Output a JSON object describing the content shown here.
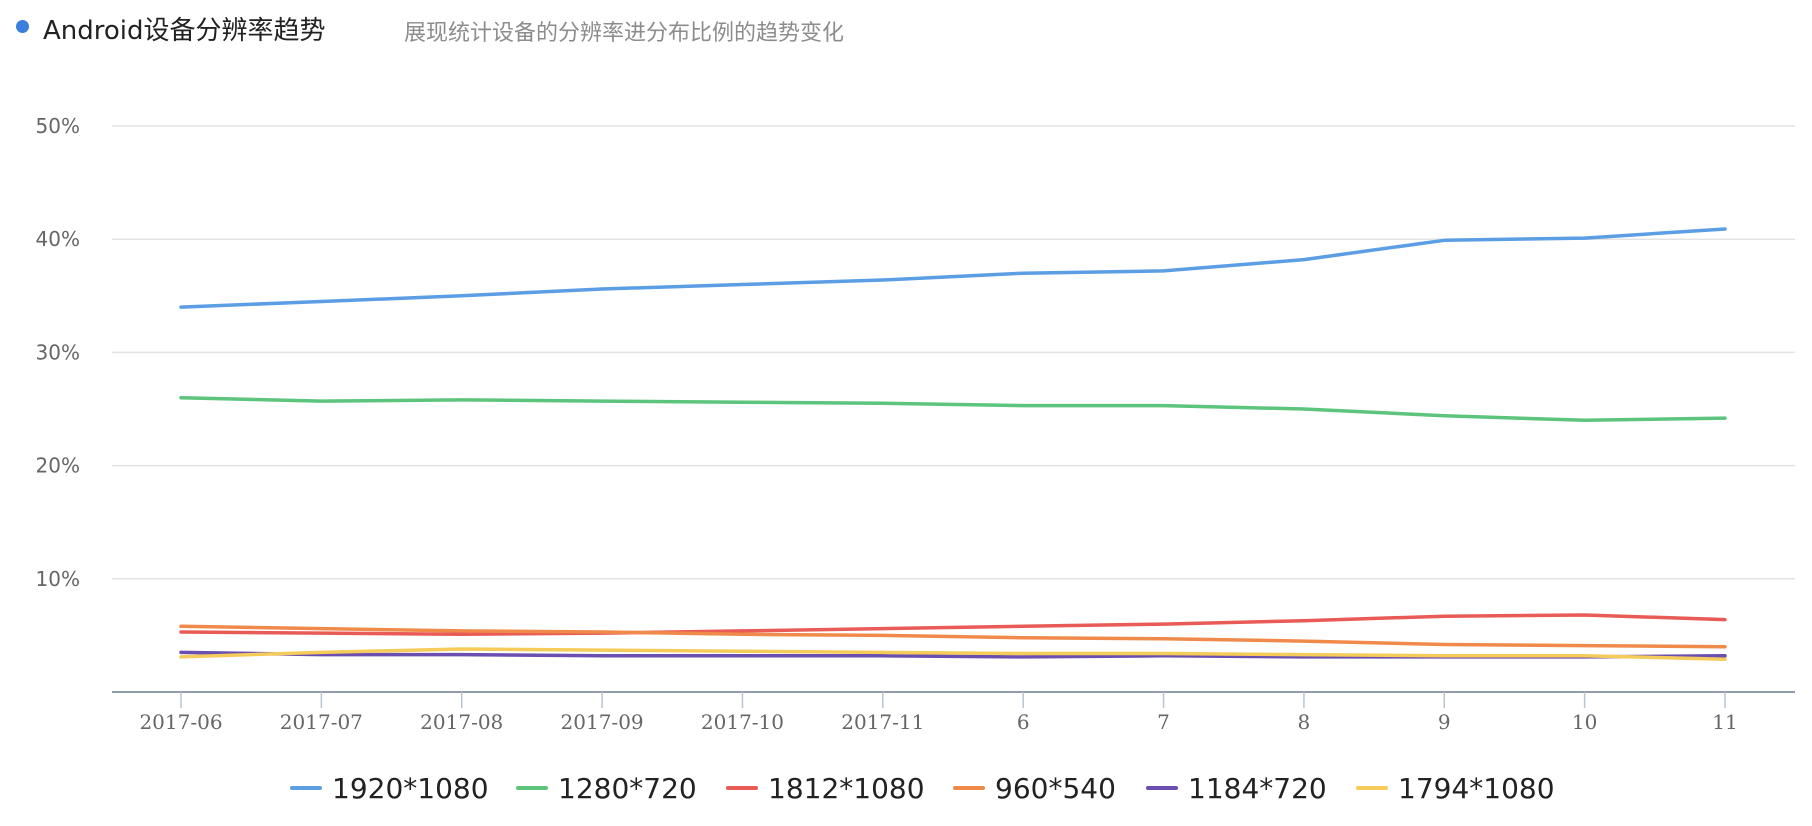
{
  "header": {
    "title": "Android设备分辨率趋势",
    "subtitle": "展现统计设备的分辨率进分布比例的趋势变化"
  },
  "chart_data": {
    "type": "line",
    "title": "Android设备分辨率趋势",
    "subtitle": "展现统计设备的分辨率进分布比例的趋势变化",
    "categories": [
      "2017-06",
      "2017-07",
      "2017-08",
      "2017-09",
      "2017-10",
      "2017-11",
      "6",
      "7",
      "8",
      "9",
      "10",
      "11"
    ],
    "y_ticks": [
      "10%",
      "20%",
      "30%",
      "40%",
      "50%"
    ],
    "ylim": [
      0,
      50
    ],
    "grid": true,
    "legend_position": "bottom",
    "series": [
      {
        "name": "1920*1080",
        "color": "#5b9ee4",
        "values": [
          34.0,
          34.5,
          35.0,
          35.6,
          36.0,
          36.4,
          37.0,
          37.2,
          38.2,
          39.9,
          40.1,
          40.9
        ]
      },
      {
        "name": "1280*720",
        "color": "#5cc47d",
        "values": [
          26.0,
          25.7,
          25.8,
          25.7,
          25.6,
          25.5,
          25.3,
          25.3,
          25.0,
          24.4,
          24.0,
          24.2
        ]
      },
      {
        "name": "1812*1080",
        "color": "#e85b56",
        "values": [
          5.3,
          5.2,
          5.1,
          5.2,
          5.4,
          5.6,
          5.8,
          6.0,
          6.3,
          6.7,
          6.8,
          6.4
        ]
      },
      {
        "name": "960*540",
        "color": "#f08a4b",
        "values": [
          5.8,
          5.6,
          5.4,
          5.3,
          5.1,
          5.0,
          4.8,
          4.7,
          4.5,
          4.2,
          4.1,
          4.0
        ]
      },
      {
        "name": "1184*720",
        "color": "#6a4fb0",
        "values": [
          3.5,
          3.3,
          3.3,
          3.2,
          3.2,
          3.2,
          3.1,
          3.2,
          3.1,
          3.1,
          3.1,
          3.2
        ]
      },
      {
        "name": "1794*1080",
        "color": "#f5cc5a",
        "values": [
          3.1,
          3.5,
          3.8,
          3.7,
          3.6,
          3.5,
          3.4,
          3.4,
          3.3,
          3.2,
          3.2,
          2.9
        ]
      }
    ]
  }
}
